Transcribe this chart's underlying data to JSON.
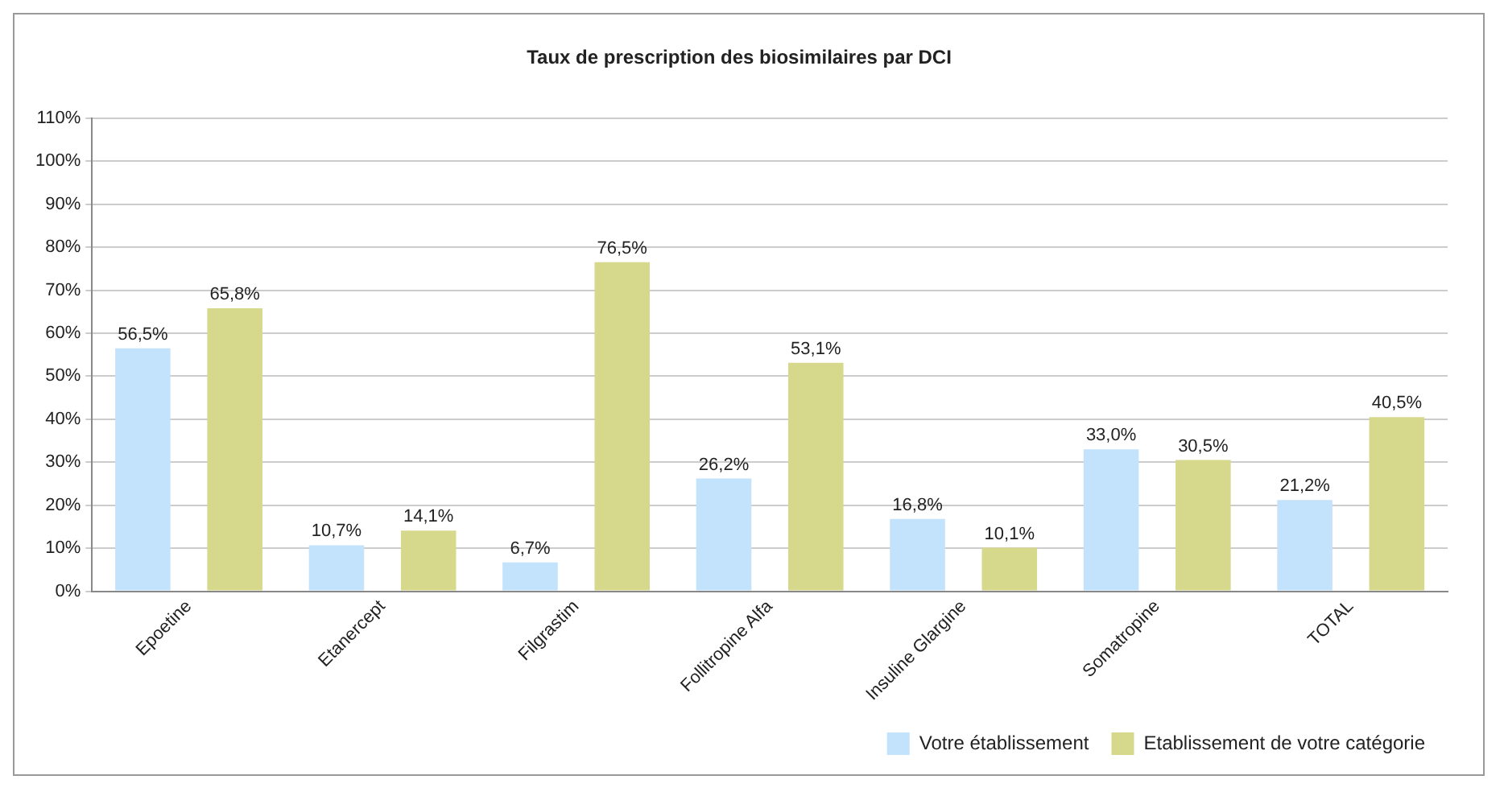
{
  "chart_data": {
    "type": "bar",
    "title": "Taux de prescription des biosimilaires par DCI",
    "categories": [
      "Epoetine",
      "Etanercept",
      "Filgrastim",
      "Follitropine Alfa",
      "Insuline Glargine",
      "Somatropine",
      "TOTAL"
    ],
    "series": [
      {
        "name": "Votre établissement",
        "color": "#c3e2fb",
        "values": [
          56.5,
          10.7,
          6.7,
          26.2,
          16.8,
          33.0,
          21.2
        ],
        "value_labels": [
          "56,5%",
          "10,7%",
          "6,7%",
          "26,2%",
          "16,8%",
          "33,0%",
          "21,2%"
        ]
      },
      {
        "name": "Etablissement de votre catégorie",
        "color": "#d6d88c",
        "values": [
          65.8,
          14.1,
          76.5,
          53.1,
          10.1,
          30.5,
          40.5
        ],
        "value_labels": [
          "65,8%",
          "14,1%",
          "76,5%",
          "53,1%",
          "10,1%",
          "30,5%",
          "40,5%"
        ]
      }
    ],
    "ylim": [
      0,
      110
    ],
    "yticks": [
      {
        "value": 0,
        "label": "0%"
      },
      {
        "value": 10,
        "label": "10%"
      },
      {
        "value": 20,
        "label": "20%"
      },
      {
        "value": 30,
        "label": "30%"
      },
      {
        "value": 40,
        "label": "40%"
      },
      {
        "value": 50,
        "label": "50%"
      },
      {
        "value": 60,
        "label": "60%"
      },
      {
        "value": 70,
        "label": "70%"
      },
      {
        "value": 80,
        "label": "80%"
      },
      {
        "value": 90,
        "label": "90%"
      },
      {
        "value": 100,
        "label": "100%"
      },
      {
        "value": 110,
        "label": "110%"
      }
    ],
    "grid": "y",
    "legend": "bottom right"
  }
}
